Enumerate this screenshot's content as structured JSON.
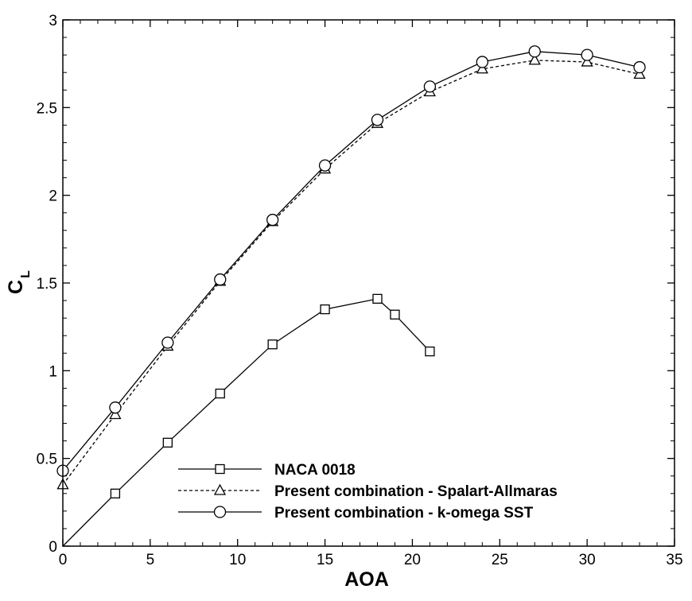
{
  "chart_data": {
    "type": "line",
    "xlabel": "AOA",
    "ylabel_main": "C",
    "ylabel_sub": "L",
    "xlim": [
      0,
      35
    ],
    "ylim": [
      0,
      3
    ],
    "xticks": [
      0,
      5,
      10,
      15,
      20,
      25,
      30,
      35
    ],
    "yticks": [
      0,
      0.5,
      1,
      1.5,
      2,
      2.5,
      3
    ],
    "xtick_labels": [
      "0",
      "5",
      "10",
      "15",
      "20",
      "25",
      "30",
      "35"
    ],
    "ytick_labels": [
      "0",
      "0.5",
      "1",
      "1.5",
      "2",
      "2.5",
      "3"
    ],
    "grid": false,
    "legend_position": "bottom-center",
    "series": [
      {
        "name": "NACA 0018",
        "marker": "square",
        "dash": "solid",
        "line_from_origin": true,
        "x": [
          3,
          6,
          9,
          12,
          15,
          18,
          19,
          21
        ],
        "y": [
          0.3,
          0.59,
          0.87,
          1.15,
          1.35,
          1.41,
          1.32,
          1.11
        ]
      },
      {
        "name": "Present combination - Spalart-Allmaras",
        "marker": "triangle",
        "dash": "dashed",
        "line_from_origin": false,
        "x": [
          0,
          3,
          6,
          9,
          12,
          15,
          18,
          21,
          24,
          27,
          30,
          33
        ],
        "y": [
          0.35,
          0.75,
          1.14,
          1.51,
          1.85,
          2.15,
          2.41,
          2.59,
          2.72,
          2.77,
          2.76,
          2.69
        ]
      },
      {
        "name": "Present combination - k-omega SST",
        "marker": "circle",
        "dash": "solid",
        "line_from_origin": false,
        "x": [
          0,
          3,
          6,
          9,
          12,
          15,
          18,
          21,
          24,
          27,
          30,
          33
        ],
        "y": [
          0.43,
          0.79,
          1.16,
          1.52,
          1.86,
          2.17,
          2.43,
          2.62,
          2.76,
          2.82,
          2.8,
          2.73
        ]
      }
    ]
  }
}
